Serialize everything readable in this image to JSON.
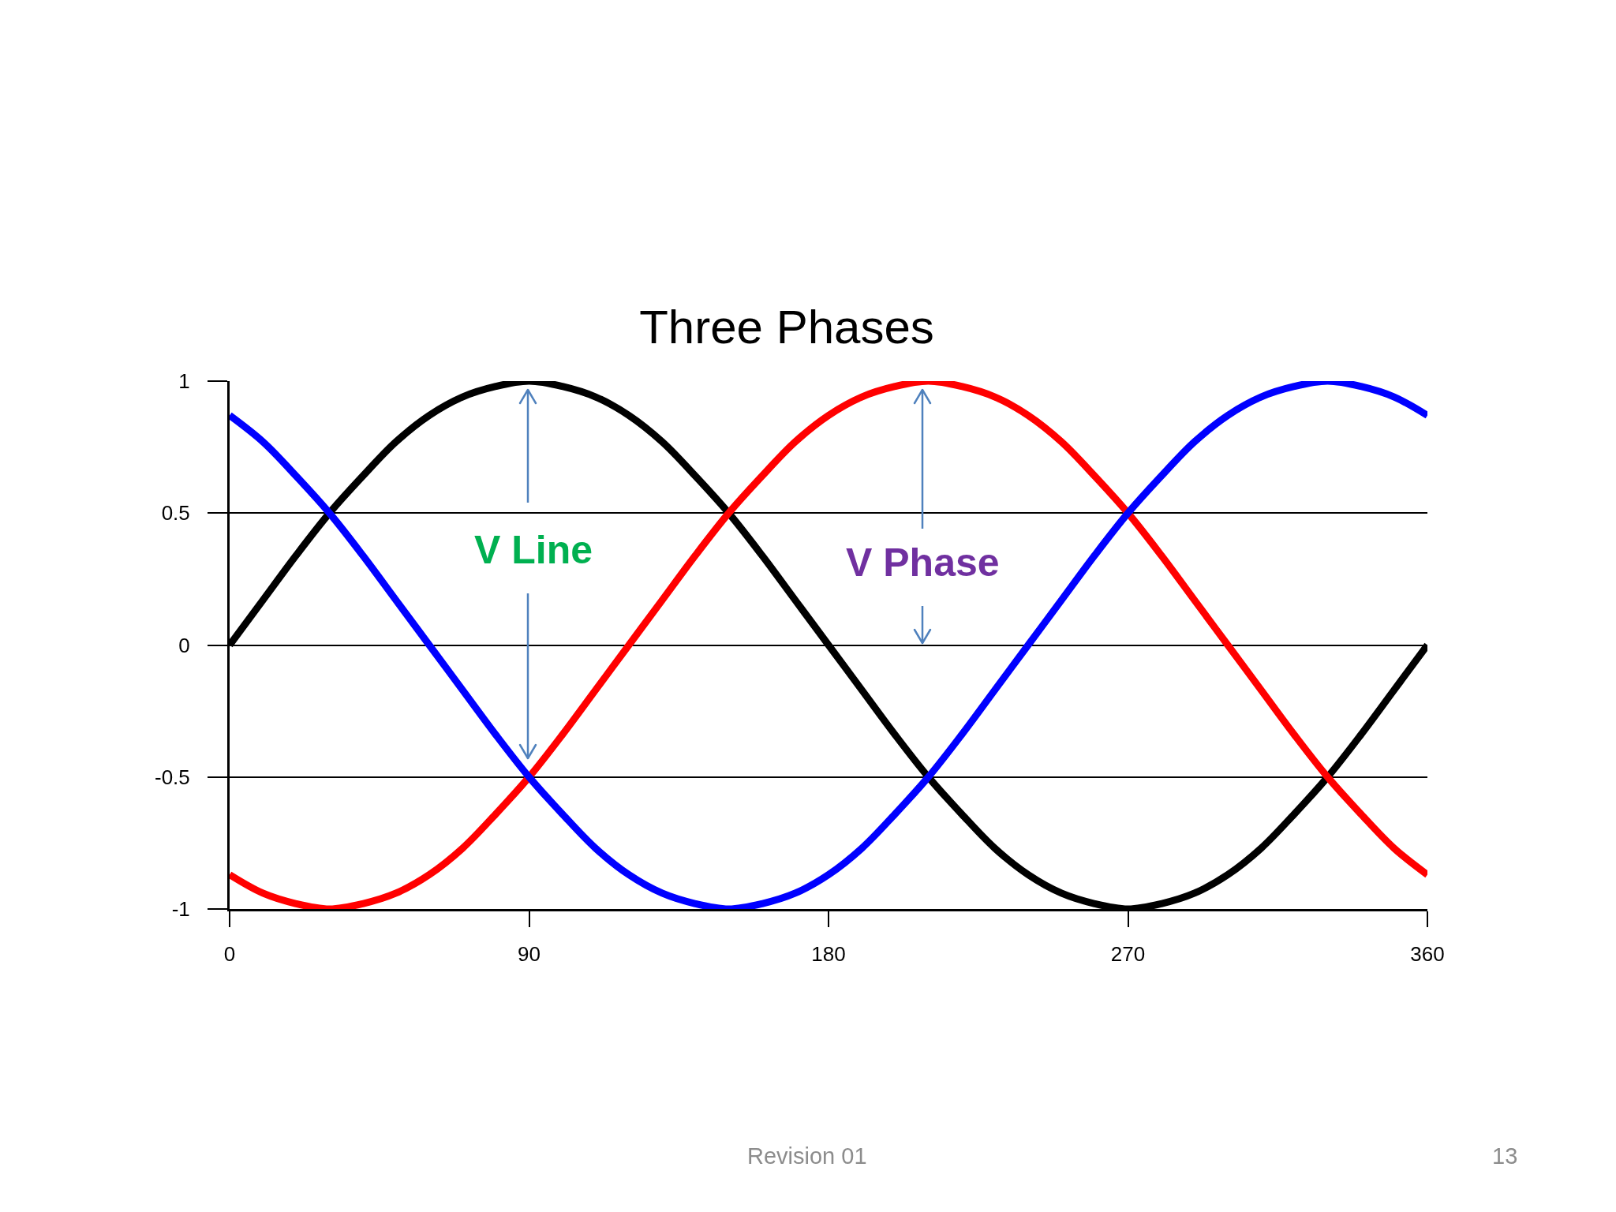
{
  "chart_data": {
    "type": "line",
    "title": "Three Phases",
    "x": [
      0,
      10,
      20,
      30,
      40,
      50,
      60,
      70,
      80,
      90,
      100,
      110,
      120,
      130,
      140,
      150,
      160,
      170,
      180,
      190,
      200,
      210,
      220,
      230,
      240,
      250,
      260,
      270,
      280,
      290,
      300,
      310,
      320,
      330,
      340,
      350,
      360
    ],
    "series": [
      {
        "color": "#000000",
        "values": [
          0,
          0.17,
          0.34,
          0.5,
          0.64,
          0.77,
          0.87,
          0.94,
          0.98,
          1,
          0.98,
          0.94,
          0.87,
          0.77,
          0.64,
          0.5,
          0.34,
          0.17,
          0,
          -0.17,
          -0.34,
          -0.5,
          -0.64,
          -0.77,
          -0.87,
          -0.94,
          -0.98,
          -1,
          -0.98,
          -0.94,
          -0.87,
          -0.77,
          -0.64,
          -0.5,
          -0.34,
          -0.17,
          0
        ]
      },
      {
        "color": "#ff0000",
        "values": [
          -0.87,
          -0.94,
          -0.98,
          -1,
          -0.98,
          -0.94,
          -0.87,
          -0.77,
          -0.64,
          -0.5,
          -0.34,
          -0.17,
          0,
          0.17,
          0.34,
          0.5,
          0.64,
          0.77,
          0.87,
          0.94,
          0.98,
          1,
          0.98,
          0.94,
          0.87,
          0.77,
          0.64,
          0.5,
          0.34,
          0.17,
          0,
          -0.17,
          -0.34,
          -0.5,
          -0.64,
          -0.77,
          -0.87
        ]
      },
      {
        "color": "#0000ff",
        "values": [
          0.87,
          0.77,
          0.64,
          0.5,
          0.34,
          0.17,
          0,
          -0.17,
          -0.34,
          -0.5,
          -0.64,
          -0.77,
          -0.87,
          -0.94,
          -0.98,
          -1,
          -0.98,
          -0.94,
          -0.87,
          -0.77,
          -0.64,
          -0.5,
          -0.34,
          -0.17,
          0,
          0.17,
          0.34,
          0.5,
          0.64,
          0.77,
          0.87,
          0.94,
          0.98,
          1,
          0.98,
          0.94,
          0.87
        ]
      }
    ],
    "xlim": [
      0,
      360
    ],
    "xticks": [
      0,
      90,
      180,
      270,
      360
    ],
    "ylim": [
      -1,
      1
    ],
    "yticks": [
      -1,
      -0.5,
      0,
      0.5,
      1
    ],
    "grid": "y",
    "annotations": [
      "V Line",
      "V Phase",
      "Revision 01",
      "13"
    ]
  }
}
